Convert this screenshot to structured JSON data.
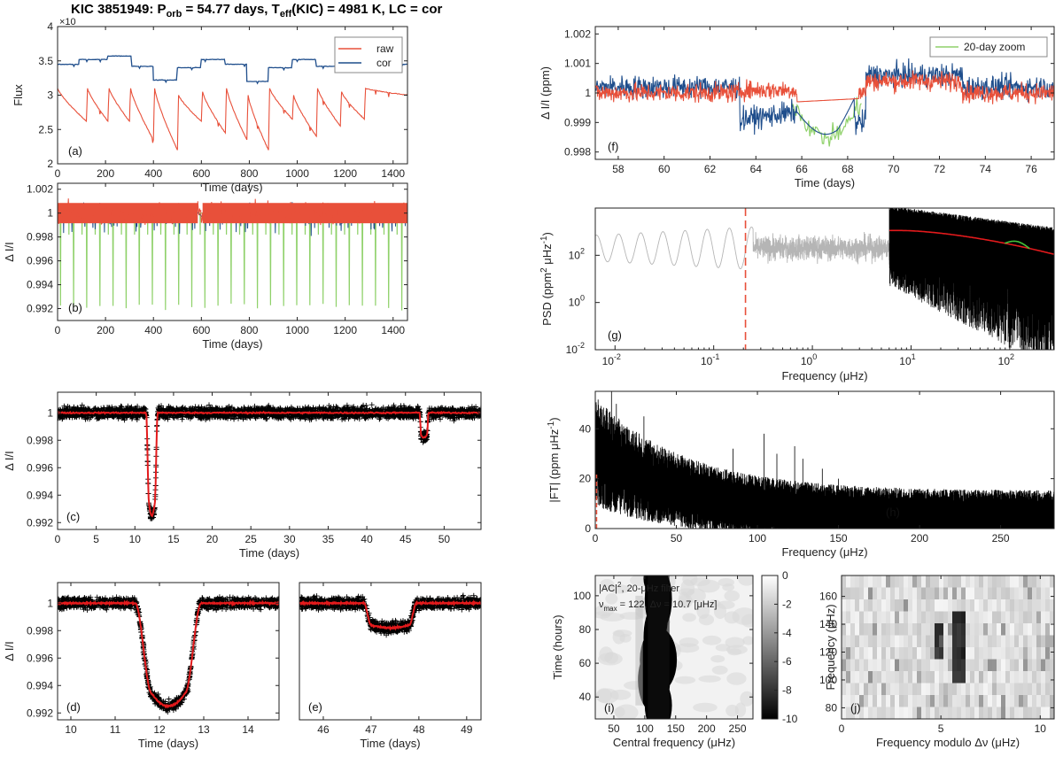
{
  "figure": {
    "title_main": "KIC 3851949: P",
    "title_sub1": "orb",
    "title_mid": " = 54.77 days, T",
    "title_sub2": "eff",
    "title_end": "(KIC) = 4981 K, LC = cor"
  },
  "colors": {
    "raw": "#e8503a",
    "cor": "#1f4e8c",
    "zoom": "#8fd16a",
    "fit": "#e31a1c",
    "gray": "#b5b5b5",
    "data": "#000000"
  },
  "chart_data": [
    {
      "id": "a",
      "type": "line",
      "panel_label": "(a)",
      "xlabel": "Time (days)",
      "ylabel": "Flux",
      "exponent": "×10",
      "xlim": [
        0,
        1460
      ],
      "ylim": [
        2.0,
        4.0
      ],
      "xticks": [
        "0",
        "200",
        "400",
        "600",
        "800",
        "1000",
        "1200",
        "1400"
      ],
      "yticks": [
        "2",
        "2.5",
        "3",
        "3.5",
        "4"
      ],
      "series": [
        {
          "name": "raw",
          "segments": [
            [
              0,
              3.1
            ],
            [
              120,
              2.62
            ],
            [
              125,
              3.1
            ],
            [
              210,
              2.62
            ],
            [
              215,
              3.1
            ],
            [
              300,
              2.62
            ],
            [
              305,
              3.1
            ],
            [
              400,
              2.35
            ],
            [
              405,
              3.1
            ],
            [
              500,
              2.2
            ],
            [
              505,
              3.0
            ],
            [
              600,
              2.62
            ],
            [
              605,
              3.05
            ],
            [
              700,
              2.45
            ],
            [
              705,
              3.1
            ],
            [
              790,
              2.35
            ],
            [
              795,
              3.0
            ],
            [
              880,
              2.2
            ],
            [
              885,
              3.1
            ],
            [
              980,
              2.65
            ],
            [
              985,
              3.0
            ],
            [
              1080,
              2.4
            ],
            [
              1085,
              3.1
            ],
            [
              1180,
              2.55
            ],
            [
              1185,
              3.05
            ],
            [
              1280,
              2.65
            ],
            [
              1285,
              3.1
            ],
            [
              1460,
              3.0
            ]
          ]
        },
        {
          "name": "cor",
          "steps": [
            [
              0,
              3.45
            ],
            [
              90,
              3.52
            ],
            [
              210,
              3.57
            ],
            [
              310,
              3.42
            ],
            [
              400,
              3.22
            ],
            [
              500,
              3.4
            ],
            [
              600,
              3.52
            ],
            [
              700,
              3.45
            ],
            [
              790,
              3.2
            ],
            [
              880,
              3.4
            ],
            [
              980,
              3.52
            ],
            [
              1080,
              3.42
            ],
            [
              1180,
              3.52
            ],
            [
              1285,
              3.45
            ],
            [
              1460,
              3.45
            ]
          ]
        }
      ],
      "legend": [
        "raw",
        "cor"
      ]
    },
    {
      "id": "b",
      "type": "line",
      "panel_label": "(b)",
      "xlabel": "Time (days)",
      "ylabel": "Δ I/I",
      "xlim": [
        0,
        1460
      ],
      "ylim": [
        0.991,
        1.0025
      ],
      "xticks": [
        "0",
        "200",
        "400",
        "600",
        "800",
        "1000",
        "1200",
        "1400"
      ],
      "yticks": [
        "0.992",
        "0.994",
        "0.996",
        "0.998",
        "1",
        "1.002"
      ],
      "period_days": 54.77,
      "first_eclipse": 12.2,
      "eclipse_depth": 0.9922
    },
    {
      "id": "c",
      "type": "scatter",
      "panel_label": "(c)",
      "xlabel": "Time (days)",
      "ylabel": "Δ I/I",
      "xlim": [
        0,
        54.77
      ],
      "ylim": [
        0.9915,
        1.0015
      ],
      "xticks": [
        "0",
        "5",
        "10",
        "15",
        "20",
        "25",
        "30",
        "35",
        "40",
        "45",
        "50"
      ],
      "yticks": [
        "0.992",
        "0.994",
        "0.996",
        "0.998",
        "1"
      ],
      "primary": {
        "center": 12.2,
        "depth": 0.9925
      },
      "secondary": {
        "center": 47.4,
        "depth": 0.9982
      }
    },
    {
      "id": "d",
      "type": "scatter",
      "panel_label": "(d)",
      "xlabel": "Time (days)",
      "ylabel": "Δ I/I",
      "xlim": [
        9.7,
        14.7
      ],
      "ylim": [
        0.9915,
        1.0015
      ],
      "xticks": [
        "10",
        "11",
        "12",
        "13",
        "14"
      ],
      "yticks": [
        "0.992",
        "0.994",
        "0.996",
        "0.998",
        "1"
      ]
    },
    {
      "id": "e",
      "type": "scatter",
      "panel_label": "(e)",
      "xlabel": "Time (days)",
      "xlim": [
        45.5,
        49.3
      ],
      "ylim": [
        0.9915,
        1.0015
      ],
      "xticks": [
        "46",
        "47",
        "48",
        "49"
      ]
    },
    {
      "id": "f",
      "type": "line",
      "panel_label": "(f)",
      "xlabel": "Time (days)",
      "ylabel": "Δ I/I (ppm)",
      "xlim": [
        57,
        77
      ],
      "ylim": [
        0.99775,
        1.00225
      ],
      "xticks": [
        "58",
        "60",
        "62",
        "64",
        "66",
        "68",
        "70",
        "72",
        "74",
        "76"
      ],
      "yticks": [
        "0.998",
        "0.999",
        "1",
        "1.001",
        "1.002"
      ],
      "legend": [
        "20-day zoom"
      ]
    },
    {
      "id": "g",
      "type": "line",
      "panel_label": "(g)",
      "xlabel": "Frequency (μHz)",
      "ylabel": "PSD (ppm",
      "ylabel_sup": "2",
      "ylabel_mid": " μHz",
      "ylabel_sup2": "-1",
      "ylabel_end": ")",
      "xlim_log": [
        -2.2,
        2.45
      ],
      "ylim_log": [
        -2,
        4.0
      ],
      "xticks": [
        "10",
        "10",
        "10",
        "10",
        "10"
      ],
      "xtick_exps": [
        "-2",
        "-1",
        "0",
        "1",
        "2"
      ],
      "yticks": [
        "10",
        "10",
        "10"
      ],
      "ytick_exps": [
        "-2",
        "0",
        "2"
      ],
      "cutoff_freq": 0.21
    },
    {
      "id": "h",
      "type": "line",
      "panel_label": "(h)",
      "xlabel": "Frequency (μHz)",
      "ylabel": "|FT| (ppm μHz",
      "ylabel_sup": "-1",
      "ylabel_end": ")",
      "xlim": [
        0,
        283
      ],
      "ylim": [
        0,
        55
      ],
      "xticks": [
        "0",
        "50",
        "100",
        "150",
        "200",
        "250"
      ],
      "yticks": [
        "0",
        "20",
        "40"
      ],
      "peaks": [
        [
          10,
          55
        ],
        [
          13,
          50
        ],
        [
          30,
          45
        ],
        [
          85,
          32
        ],
        [
          104,
          38
        ],
        [
          112,
          30
        ],
        [
          123,
          33
        ],
        [
          128,
          28
        ],
        [
          140,
          24
        ],
        [
          150,
          20
        ]
      ]
    },
    {
      "id": "i",
      "type": "heatmap",
      "panel_label": "(i)",
      "xlabel": "Central frequency (μHz)",
      "ylabel": "Time (hours)",
      "xlim": [
        20,
        275
      ],
      "ylim": [
        27,
        112
      ],
      "xticks": [
        "50",
        "100",
        "150",
        "200",
        "250"
      ],
      "yticks": [
        "40",
        "60",
        "80",
        "100"
      ],
      "annot1": "|AC|",
      "annot1_sup": "2",
      "annot1_end": ", 20-μHz filter",
      "annot2": "ν",
      "annot2_sub": "max",
      "annot2_end": " = 122, Δν = 10.7 [μHz]",
      "colorbar_ticks": [
        "0",
        "-2",
        "-4",
        "-6",
        "-8",
        "-10"
      ]
    },
    {
      "id": "j",
      "type": "heatmap",
      "panel_label": "(j)",
      "xlabel": "Frequency modulo  Δν (μHz)",
      "ylabel": "Frequency (μHz)",
      "xlim": [
        0,
        10.7
      ],
      "ylim": [
        72,
        175
      ],
      "xticks": [
        "0",
        "5",
        "10"
      ],
      "yticks": [
        "80",
        "100",
        "120",
        "140",
        "160"
      ]
    }
  ]
}
